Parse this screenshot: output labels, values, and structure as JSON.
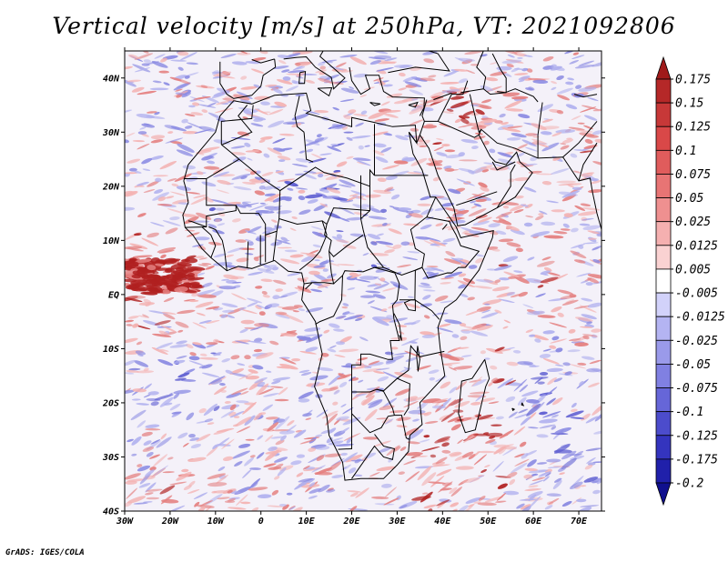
{
  "title": "Vertical velocity [m/s] at 250hPa, VT: 2021092806",
  "credit": "GrADS: IGES/COLA",
  "map": {
    "lon_labels": [
      "30W",
      "20W",
      "10W",
      "0",
      "10E",
      "20E",
      "30E",
      "40E",
      "50E",
      "60E",
      "70E"
    ],
    "lat_labels": [
      "40N",
      "30N",
      "20N",
      "10N",
      "EQ",
      "10S",
      "20S",
      "30S",
      "40S"
    ],
    "lon_range": [
      -30,
      75
    ],
    "lat_range": [
      -40,
      45
    ]
  },
  "colorbar": {
    "labels": [
      "0.175",
      "0.15",
      "0.125",
      "0.1",
      "0.075",
      "0.05",
      "0.025",
      "0.0125",
      "0.005",
      "-0.005",
      "-0.0125",
      "-0.025",
      "-0.05",
      "-0.075",
      "-0.1",
      "-0.125",
      "-0.175",
      "-0.2"
    ],
    "colors": [
      "#a01a1a",
      "#b52828",
      "#c73838",
      "#d94848",
      "#e05c5c",
      "#e87474",
      "#ef9090",
      "#f5b0b0",
      "#fad2d2",
      "#ffffff",
      "#d2d2fa",
      "#b4b4f2",
      "#9a9aea",
      "#8080e2",
      "#6666d8",
      "#4c4ccc",
      "#3434be",
      "#2020aa",
      "#10108e"
    ]
  },
  "field_colors": {
    "neutral": "#f4f1f9",
    "blue_light": "#b0b0ee",
    "blue_mid": "#8a8ae2",
    "blue_dark": "#5a5ad0",
    "red_light": "#f3b2b2",
    "red_mid": "#e48080",
    "red_dark": "#b02020",
    "border": "#000000"
  }
}
